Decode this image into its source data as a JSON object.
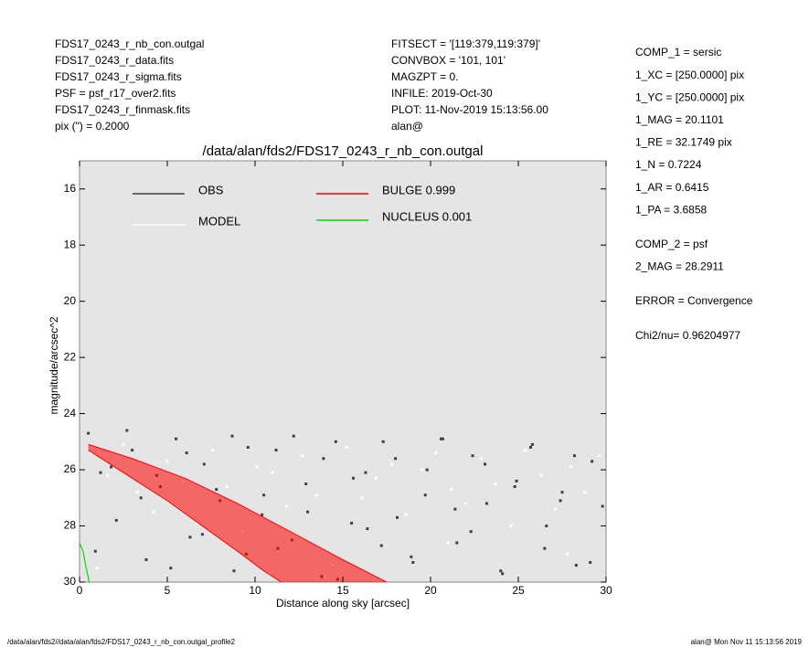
{
  "info_left": [
    "FDS17_0243_r_nb_con.outgal",
    "FDS17_0243_r_data.fits",
    "FDS17_0243_r_sigma.fits",
    "PSF     = psf_r17_over2.fits",
    "FDS17_0243_r_finmask.fits",
    "pix (\") =  0.2000"
  ],
  "info_center": [
    "FITSECT = '[119:379,119:379]'",
    "CONVBOX = '101, 101'",
    "MAGZPT  =                 0.",
    "INFILE: 2019-Oct-30",
    "PLOT: 11-Nov-2019 15:13:56.00",
    "alan@"
  ],
  "info_right": [
    [
      "COMP_1  = sersic",
      "1_XC    = [250.0000] pix",
      "1_YC    = [250.0000] pix",
      "1_MAG   = 20.1101",
      "1_RE    = 32.1749 pix",
      "1_N     = 0.7224",
      "1_AR    = 0.6415",
      "1_PA    = 3.6858"
    ],
    [
      "COMP_2  = psf",
      "2_MAG   = 28.2911"
    ],
    [
      "ERROR   = Convergence"
    ],
    [
      "Chi2/nu=      0.96204977"
    ]
  ],
  "footer": [
    "/data/alan/fds2//data/alan/fds2/FDS17_0243_r_nb_con.outgal_profile2",
    "alan@  Mon Nov 11 15:13:56 2019"
  ],
  "chart_data": {
    "type": "scatter",
    "title": "/data/alan/fds2/FDS17_0243_r_nb_con.outgal",
    "xlabel": "Distance along sky [arcsec]",
    "ylabel": "magnitude/arcsec^2",
    "xlim": [
      0,
      30
    ],
    "ylim": [
      30,
      15
    ],
    "xticks": [
      0,
      5,
      10,
      15,
      20,
      25,
      30
    ],
    "yticks": [
      16,
      18,
      20,
      22,
      24,
      26,
      28,
      30
    ],
    "series": [
      {
        "name": "OBS",
        "kind": "points",
        "color": "#404040",
        "label_color": "#8c8c8c",
        "x": [
          0.5,
          1.2,
          2.1,
          3.0,
          3.8,
          4.6,
          5.5,
          6.3,
          7.1,
          8.0,
          8.8,
          9.6,
          10.5,
          11.3,
          12.2,
          13.0,
          13.9,
          14.7,
          15.6,
          16.4,
          17.3,
          18.1,
          19.0,
          19.8,
          20.7,
          21.5,
          22.4,
          23.2,
          24.1,
          24.9,
          25.8,
          26.6,
          27.5,
          28.3,
          29.2,
          29.8,
          0.9,
          1.8,
          2.7,
          3.5,
          4.4,
          5.2,
          6.1,
          7.0,
          7.8,
          8.7,
          9.5,
          10.4,
          11.2,
          12.1,
          12.9,
          13.8,
          14.6,
          15.5,
          16.3,
          17.2,
          18.0,
          18.9,
          19.7,
          20.6,
          21.4,
          22.3,
          23.1,
          24.0,
          24.8,
          25.7,
          26.5,
          27.4,
          28.2,
          29.1
        ],
        "values": [
          24.7,
          26.1,
          27.8,
          25.3,
          29.2,
          26.6,
          24.9,
          28.4,
          25.8,
          27.1,
          29.6,
          25.2,
          26.9,
          28.8,
          24.8,
          27.5,
          25.6,
          29.9,
          26.3,
          28.1,
          25.0,
          27.7,
          29.3,
          26.0,
          24.9,
          28.6,
          25.5,
          27.2,
          29.7,
          26.4,
          25.1,
          28.0,
          26.8,
          29.4,
          25.7,
          27.3,
          28.9,
          25.9,
          24.6,
          27.0,
          26.2,
          29.5,
          25.4,
          28.3,
          26.7,
          24.8,
          29.0,
          27.6,
          25.3,
          28.5,
          26.5,
          29.8,
          25.0,
          27.9,
          26.1,
          28.7,
          25.6,
          29.1,
          26.9,
          24.9,
          27.4,
          28.2,
          25.8,
          29.6,
          26.6,
          25.2,
          28.8,
          27.1,
          25.5,
          29.3
        ]
      },
      {
        "name": "MODEL",
        "kind": "points",
        "color": "#ffffff",
        "label_color": "#ffffff",
        "x": [
          0.7,
          1.6,
          2.5,
          3.3,
          4.2,
          5.0,
          5.9,
          6.7,
          7.6,
          8.4,
          9.3,
          10.1,
          11.0,
          11.8,
          12.7,
          13.5,
          14.4,
          15.2,
          16.1,
          16.9,
          17.8,
          18.6,
          19.5,
          20.3,
          21.2,
          22.0,
          22.9,
          23.7,
          24.6,
          25.4,
          26.3,
          27.1,
          28.0,
          28.8,
          29.6,
          1.0,
          10.8,
          14.0,
          21.0,
          27.8
        ],
        "values": [
          25.4,
          26.2,
          25.1,
          26.8,
          27.5,
          25.7,
          26.4,
          27.9,
          25.3,
          26.6,
          28.2,
          25.9,
          26.1,
          27.3,
          25.5,
          26.9,
          29.4,
          25.2,
          27.0,
          26.3,
          25.8,
          27.6,
          26.0,
          25.4,
          26.7,
          27.2,
          25.6,
          26.5,
          28.0,
          25.3,
          26.2,
          27.4,
          25.9,
          26.8,
          25.5,
          29.5,
          29.7,
          29.8,
          28.6,
          29.0
        ]
      },
      {
        "name": "BULGE  0.999",
        "kind": "band",
        "color": "#ff0000",
        "label_color": "#ff0000",
        "x": [
          0.5,
          3,
          6,
          9,
          12,
          15,
          17.5,
          null,
          0.5,
          3,
          5,
          7,
          9,
          10.5,
          11.5
        ],
        "values": [
          25.1,
          25.6,
          26.3,
          27.2,
          28.2,
          29.2,
          30,
          null,
          25.3,
          26.3,
          27.1,
          28,
          28.9,
          29.6,
          30
        ]
      },
      {
        "name": "NUCLEUS  0.001",
        "kind": "line",
        "color": "#00dd00",
        "label_color": "#00dd00",
        "x": [
          0,
          0.2,
          0.35,
          0.55
        ],
        "values": [
          28.6,
          28.9,
          29.4,
          30
        ]
      }
    ]
  }
}
